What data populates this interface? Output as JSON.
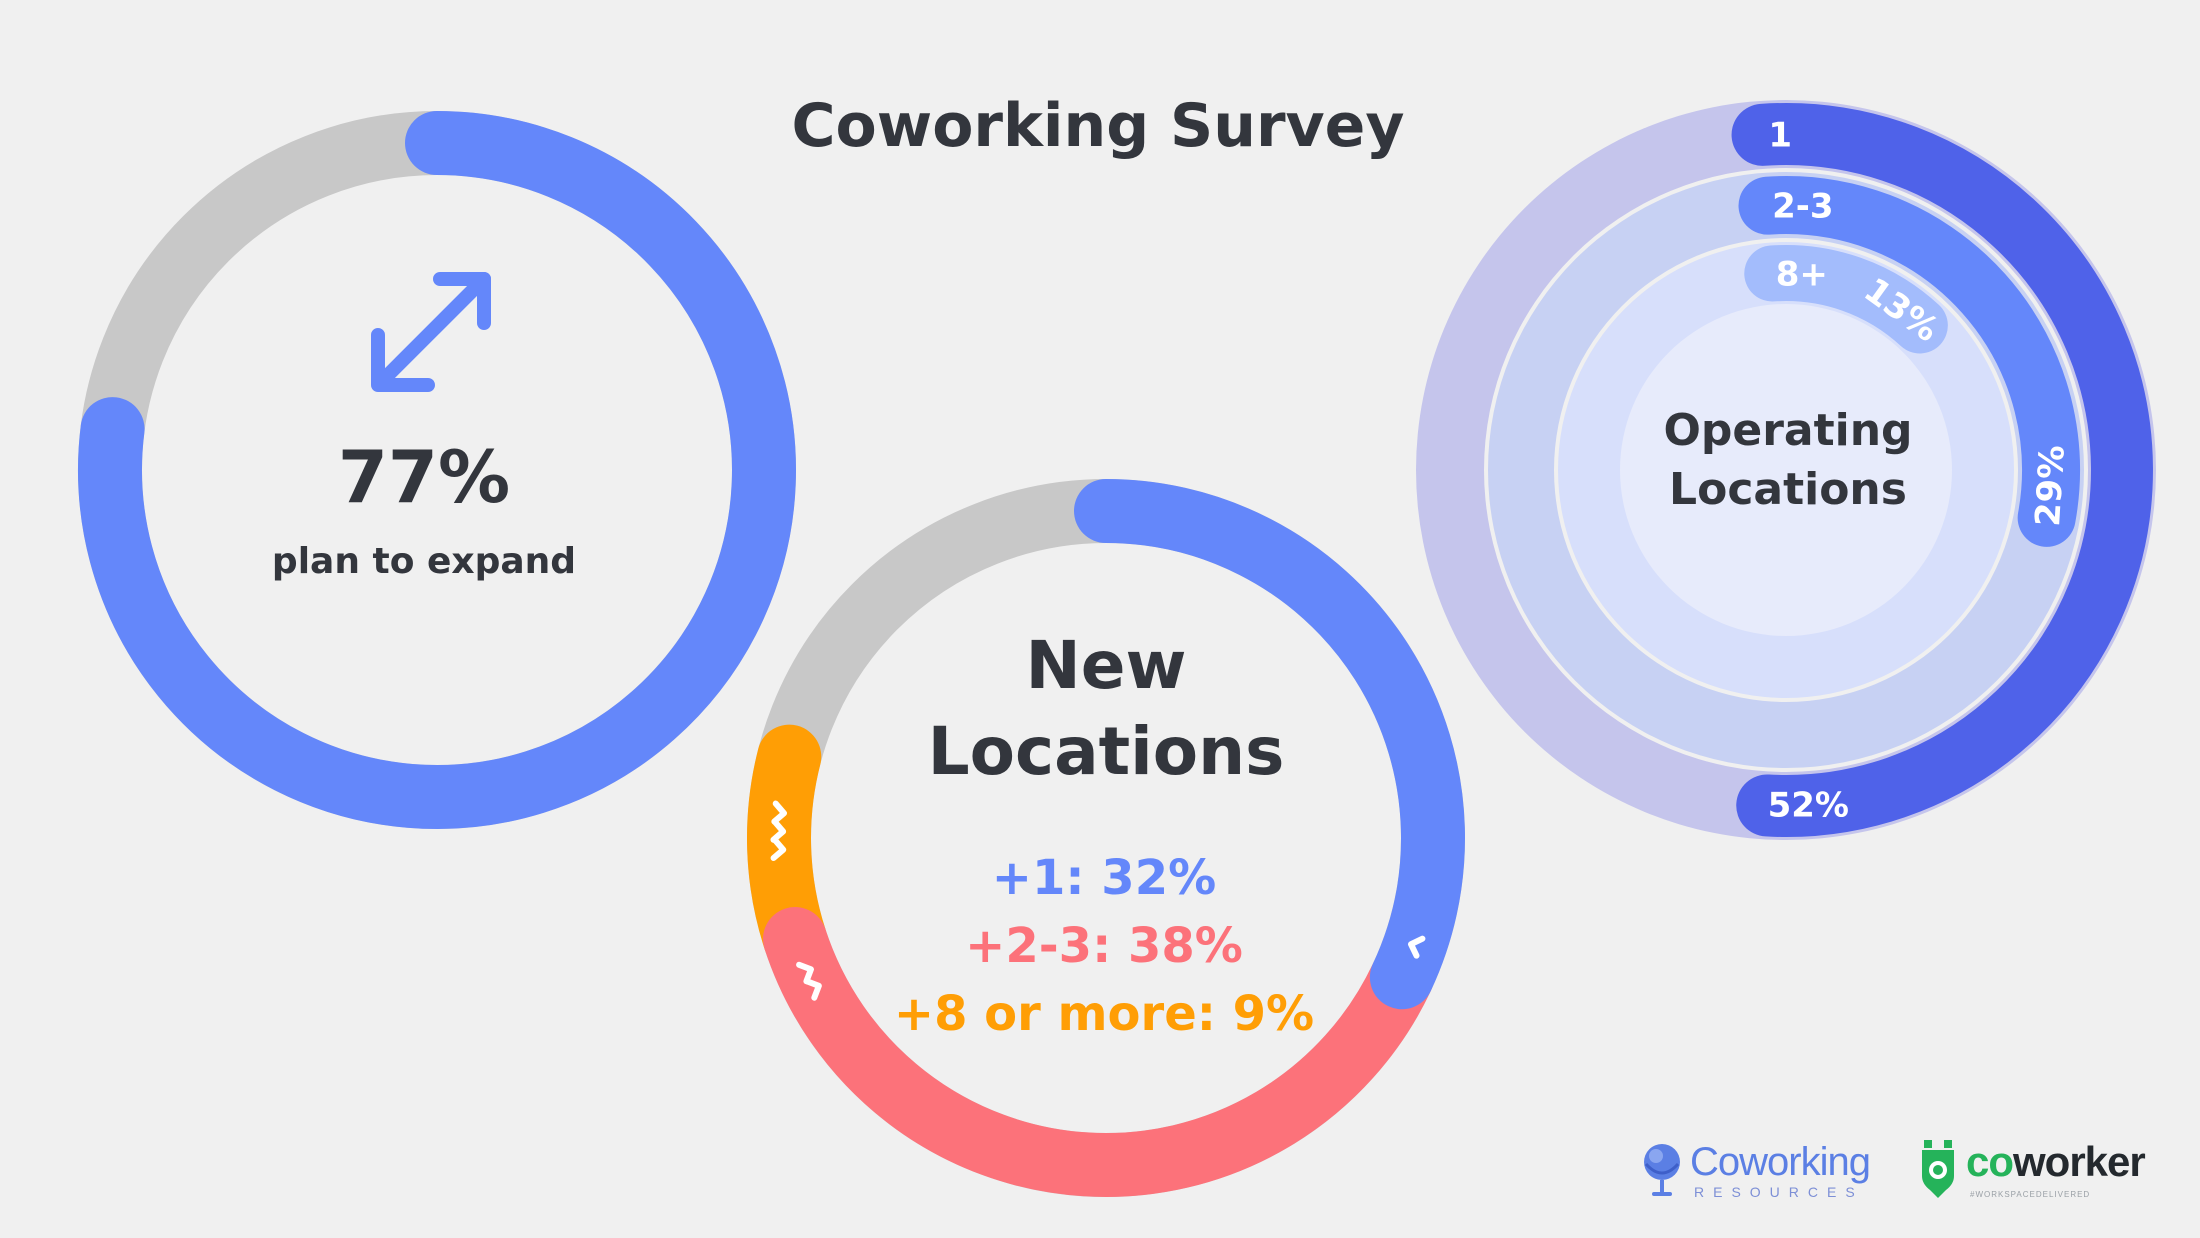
{
  "title": "Coworking Survey",
  "colors": {
    "background": "#f0f0f0",
    "track": "#c8c8c8",
    "blue": "#6487fa",
    "coral": "#fc727a",
    "orange": "#ff9e05",
    "text": "#33363d",
    "ring_outer": "#4f62e9",
    "ring_outer_bg": "#c5c5ec",
    "ring_mid": "#6487fa",
    "ring_mid_bg": "#c7d1f3",
    "ring_inner": "#a3bcfc",
    "ring_inner_bg": "#d7dffb",
    "ring_center": "#e7ebfb"
  },
  "chart_data": [
    {
      "type": "pie",
      "variant": "donut",
      "slices": [
        {
          "label": "plan to expand",
          "value": 77
        },
        {
          "label": "",
          "value": 23
        }
      ],
      "center_value": "77%",
      "center_label": "plan to expand",
      "icon": "expand-arrows-icon"
    },
    {
      "type": "pie",
      "variant": "donut",
      "title": "New Locations",
      "title_lines": [
        "New",
        "Locations"
      ],
      "slices": [
        {
          "label": "+1",
          "value": 32,
          "color": "#6487fa",
          "icon": "chevron-single-icon"
        },
        {
          "label": "+2-3",
          "value": 38,
          "color": "#fc727a",
          "icon": "chevron-double-icon"
        },
        {
          "label": "+8 or more",
          "value": 9,
          "color": "#ff9e05",
          "icon": "chevron-triple-icon"
        },
        {
          "label": "",
          "value": 21,
          "color": "#c8c8c8"
        }
      ],
      "legend": [
        "+1: 32%",
        "+2-3: 38%",
        "+8 or more: 9%"
      ]
    },
    {
      "type": "pie",
      "variant": "radial-bar",
      "title": "Operating Locations",
      "title_lines": [
        "Operating",
        "Locations"
      ],
      "series": [
        {
          "name": "1",
          "value": 52,
          "value_label": "52%"
        },
        {
          "name": "2-3",
          "value": 29,
          "value_label": "29%"
        },
        {
          "name": "8+",
          "value": 13,
          "value_label": "13%"
        }
      ]
    }
  ],
  "logos": {
    "coworking": {
      "word": "Coworking",
      "sub": "RESOURCES",
      "icon": "globe-icon"
    },
    "coworker": {
      "word_a": "co",
      "word_b": "worker",
      "sub": "#WORKSPACEDELIVERED",
      "icon": "location-pin-icon"
    }
  }
}
